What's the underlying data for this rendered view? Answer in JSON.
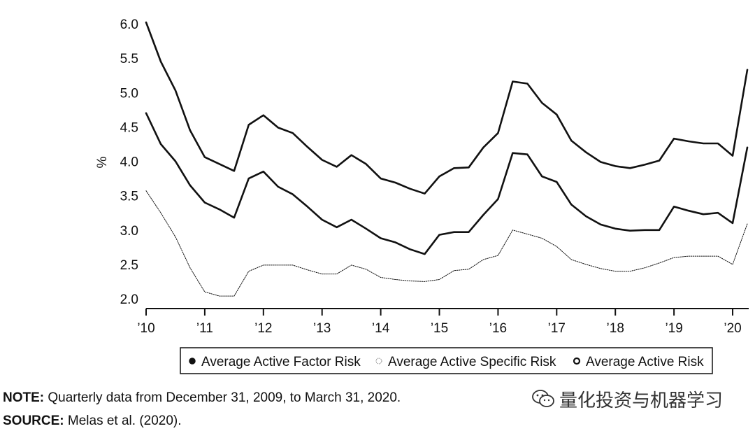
{
  "chart_data": {
    "type": "line",
    "title": "",
    "xlabel": "",
    "ylabel": "%",
    "ylim": [
      2.0,
      6.0
    ],
    "yticks": [
      "2.0",
      "2.5",
      "3.0",
      "3.5",
      "4.0",
      "4.5",
      "5.0",
      "5.5",
      "6.0"
    ],
    "xlim": [
      2010.0,
      2020.25
    ],
    "xticks": [
      {
        "value": 2010,
        "label": "’10"
      },
      {
        "value": 2011,
        "label": "’11"
      },
      {
        "value": 2012,
        "label": "’12"
      },
      {
        "value": 2013,
        "label": "’13"
      },
      {
        "value": 2014,
        "label": "’14"
      },
      {
        "value": 2015,
        "label": "’15"
      },
      {
        "value": 2016,
        "label": "’16"
      },
      {
        "value": 2017,
        "label": "’17"
      },
      {
        "value": 2018,
        "label": "’18"
      },
      {
        "value": 2019,
        "label": "’19"
      },
      {
        "value": 2020,
        "label": "’20"
      }
    ],
    "grid": false,
    "legend_position": "bottom",
    "x": [
      2010.0,
      2010.25,
      2010.5,
      2010.75,
      2011.0,
      2011.25,
      2011.5,
      2011.75,
      2012.0,
      2012.25,
      2012.5,
      2012.75,
      2013.0,
      2013.25,
      2013.5,
      2013.75,
      2014.0,
      2014.25,
      2014.5,
      2014.75,
      2015.0,
      2015.25,
      2015.5,
      2015.75,
      2016.0,
      2016.25,
      2016.5,
      2016.75,
      2017.0,
      2017.25,
      2017.5,
      2017.75,
      2018.0,
      2018.25,
      2018.5,
      2018.75,
      2019.0,
      2019.25,
      2019.5,
      2019.75,
      2020.0,
      2020.25
    ],
    "series": [
      {
        "name": "Average Active Factor Risk",
        "style": "solid-thick",
        "values": [
          4.7,
          4.25,
          4.0,
          3.65,
          3.4,
          3.3,
          3.18,
          3.75,
          3.85,
          3.63,
          3.52,
          3.34,
          3.15,
          3.04,
          3.15,
          3.02,
          2.88,
          2.82,
          2.72,
          2.65,
          2.93,
          2.97,
          2.97,
          3.22,
          3.45,
          4.12,
          4.1,
          3.78,
          3.7,
          3.37,
          3.2,
          3.08,
          3.02,
          2.99,
          3.0,
          3.0,
          3.34,
          3.28,
          3.23,
          3.25,
          3.1,
          4.2
        ]
      },
      {
        "name": "Average Active Specific Risk",
        "style": "dotted-thin",
        "values": [
          3.57,
          3.25,
          2.9,
          2.45,
          2.1,
          2.04,
          2.04,
          2.4,
          2.49,
          2.49,
          2.49,
          2.42,
          2.36,
          2.36,
          2.49,
          2.43,
          2.31,
          2.28,
          2.26,
          2.25,
          2.28,
          2.41,
          2.43,
          2.57,
          2.63,
          3.0,
          2.94,
          2.88,
          2.76,
          2.57,
          2.5,
          2.44,
          2.4,
          2.4,
          2.45,
          2.52,
          2.6,
          2.62,
          2.62,
          2.62,
          2.5,
          3.09
        ]
      },
      {
        "name": "Average Active Risk",
        "style": "solid-thick",
        "values": [
          6.02,
          5.45,
          5.03,
          4.45,
          4.06,
          3.96,
          3.86,
          4.53,
          4.67,
          4.49,
          4.41,
          4.21,
          4.02,
          3.92,
          4.09,
          3.96,
          3.75,
          3.69,
          3.6,
          3.53,
          3.78,
          3.9,
          3.91,
          4.2,
          4.41,
          5.16,
          5.13,
          4.85,
          4.68,
          4.3,
          4.13,
          3.99,
          3.93,
          3.9,
          3.95,
          4.01,
          4.33,
          4.29,
          4.26,
          4.26,
          4.08,
          5.33
        ]
      }
    ]
  },
  "note": {
    "label": "NOTE:",
    "text": " Quarterly data from December 31, 2009, to March 31, 2020."
  },
  "source": {
    "label": "SOURCE:",
    "text": " Melas et al. (2020)."
  },
  "watermark": {
    "text": "量化投资与机器学习",
    "icon": "wechat-icon"
  }
}
